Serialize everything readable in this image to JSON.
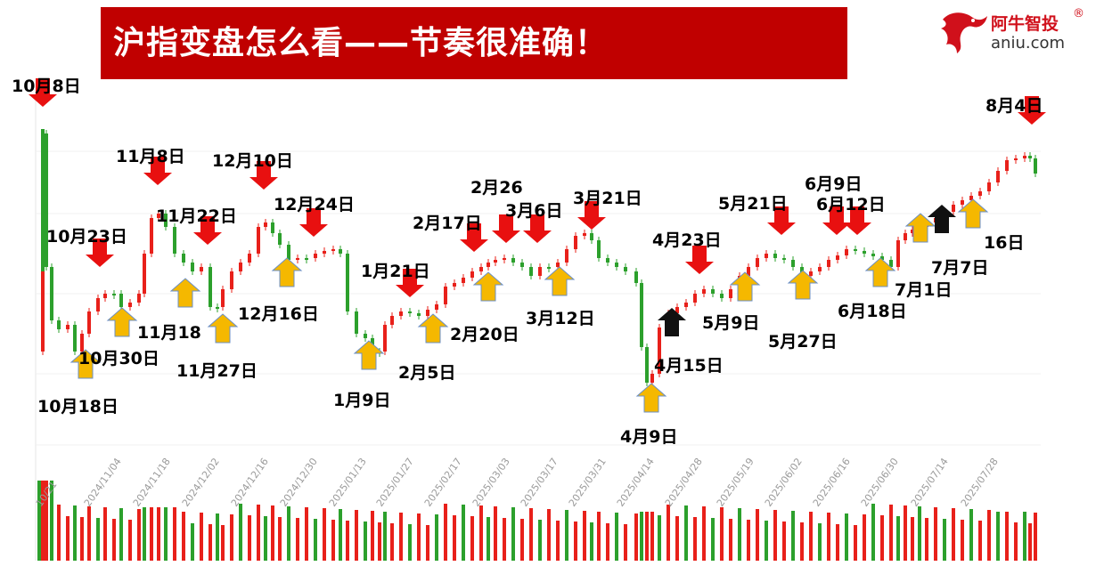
{
  "banner": {
    "title": "沪指变盘怎么看——节奏很准确！",
    "color": "#c00000"
  },
  "logo": {
    "brand": "阿牛智投",
    "registered": "®",
    "url": "aniu.com",
    "icon": "bull-logo-icon",
    "color": "#d0101b"
  },
  "chart_data": {
    "type": "candlestick",
    "title": "",
    "up_color": "#e8201a",
    "down_color": "#2ca02c",
    "x_tick_labels": [
      "10/21",
      "2024/11/04",
      "2024/11/18",
      "2024/12/02",
      "2024/12/16",
      "2024/12/30",
      "2025/01/13",
      "2025/01/27",
      "2025/02/17",
      "2025/03/03",
      "2025/03/17",
      "2025/03/31",
      "2025/04/14",
      "2025/04/28",
      "2025/05/19",
      "2025/06/02",
      "2025/06/16",
      "2025/06/30",
      "2025/07/14",
      "2025/07/28"
    ],
    "grid": true,
    "volume_panel": true,
    "annotations": [
      {
        "label": "10月8日",
        "type": "top-arrow",
        "color": "#e81010"
      },
      {
        "label": "10月18日",
        "type": "bottom-arrow",
        "color": "#f5b800"
      },
      {
        "label": "10月23日",
        "type": "top-arrow",
        "color": "#e81010"
      },
      {
        "label": "10月30日",
        "type": "bottom-arrow",
        "color": "#f5b800"
      },
      {
        "label": "11月8日",
        "type": "top-arrow",
        "color": "#e81010"
      },
      {
        "label": "11月18",
        "type": "bottom-arrow",
        "color": "#f5b800"
      },
      {
        "label": "11月22日",
        "type": "top-arrow",
        "color": "#e81010"
      },
      {
        "label": "11月27日",
        "type": "bottom-arrow",
        "color": "#f5b800"
      },
      {
        "label": "12月10日",
        "type": "top-arrow",
        "color": "#e81010"
      },
      {
        "label": "12月16日",
        "type": "bottom-arrow",
        "color": "#f5b800"
      },
      {
        "label": "12月24日",
        "type": "top-arrow",
        "color": "#e81010"
      },
      {
        "label": "1月9日",
        "type": "bottom-arrow",
        "color": "#f5b800"
      },
      {
        "label": "1月21日",
        "type": "top-arrow",
        "color": "#e81010"
      },
      {
        "label": "2月5日",
        "type": "bottom-arrow",
        "color": "#f5b800"
      },
      {
        "label": "2月17日",
        "type": "top-arrow",
        "color": "#e81010"
      },
      {
        "label": "2月20日",
        "type": "bottom-arrow",
        "color": "#f5b800"
      },
      {
        "label": "2月26",
        "type": "top-arrow",
        "color": "#e81010"
      },
      {
        "label": "3月6日",
        "type": "top-arrow",
        "color": "#e81010"
      },
      {
        "label": "3月12日",
        "type": "bottom-arrow",
        "color": "#f5b800"
      },
      {
        "label": "3月21日",
        "type": "top-arrow",
        "color": "#e81010"
      },
      {
        "label": "4月9日",
        "type": "bottom-arrow",
        "color": "#f5b800"
      },
      {
        "label": "4月15日",
        "type": "bottom-arrow",
        "color": "#111111"
      },
      {
        "label": "4月23日",
        "type": "top-arrow",
        "color": "#e81010"
      },
      {
        "label": "5月9日",
        "type": "bottom-arrow",
        "color": "#f5b800"
      },
      {
        "label": "5月21日",
        "type": "top-arrow",
        "color": "#e81010"
      },
      {
        "label": "5月27日",
        "type": "bottom-arrow",
        "color": "#f5b800"
      },
      {
        "label": "6月9日",
        "type": "top-arrow",
        "color": "#e81010"
      },
      {
        "label": "6月12日",
        "type": "top-arrow",
        "color": "#e81010"
      },
      {
        "label": "6月18日",
        "type": "bottom-arrow",
        "color": "#f5b800"
      },
      {
        "label": "7月1日",
        "type": "bottom-arrow",
        "color": "#f5b800"
      },
      {
        "label": "7月7日",
        "type": "bottom-arrow",
        "color": "#111111"
      },
      {
        "label": "16日",
        "type": "bottom-arrow",
        "color": "#f5b800"
      },
      {
        "label": "8月4日",
        "type": "top-arrow",
        "color": "#e81010"
      }
    ]
  }
}
